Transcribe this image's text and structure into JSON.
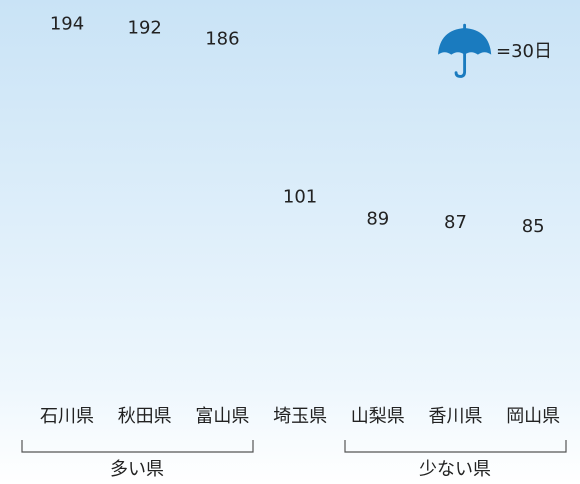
{
  "chart_data": {
    "type": "pictograph",
    "categories": [
      "石川県",
      "秋田県",
      "富山県",
      "埼玉県",
      "山梨県",
      "香川県",
      "岡山県"
    ],
    "values": [
      194,
      192,
      186,
      101,
      89,
      87,
      85
    ],
    "color": "#1a7bbf",
    "icon_unit": {
      "value": 30,
      "label": "=30日"
    },
    "groups": [
      {
        "label": "多い県"
      },
      {
        "label": "少ない県"
      }
    ]
  }
}
